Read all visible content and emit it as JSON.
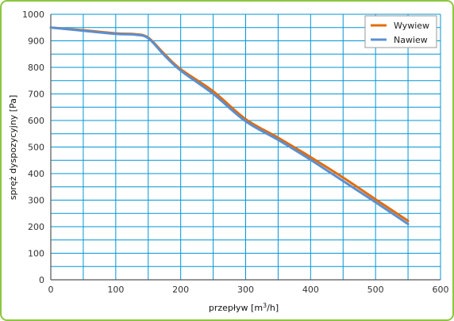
{
  "chart_data": {
    "type": "line",
    "xlabel": "przepływ [m",
    "xlabel_sup": "3",
    "xlabel_suffix": "/h]",
    "ylabel": "spręż dyspozycyjny [Pa]",
    "xlim": [
      0,
      600
    ],
    "ylim": [
      0,
      1000
    ],
    "x_ticks": [
      "0",
      "100",
      "200",
      "300",
      "400",
      "500",
      "600"
    ],
    "y_ticks": [
      "0",
      "100",
      "200",
      "300",
      "400",
      "500",
      "600",
      "700",
      "800",
      "900",
      "1000"
    ],
    "grid": true,
    "legend_position": "top-right",
    "series": [
      {
        "name": "Wywiew",
        "color": "#e36c0a",
        "x": [
          0,
          50,
          100,
          130,
          150,
          175,
          200,
          250,
          300,
          350,
          400,
          450,
          500,
          550
        ],
        "y": [
          950,
          940,
          928,
          925,
          912,
          850,
          793,
          710,
          605,
          535,
          462,
          385,
          303,
          222
        ]
      },
      {
        "name": "Nawiew",
        "color": "#5b8fd0",
        "x": [
          0,
          50,
          100,
          130,
          150,
          175,
          200,
          250,
          300,
          350,
          400,
          450,
          500,
          550
        ],
        "y": [
          950,
          938,
          926,
          923,
          910,
          845,
          788,
          700,
          597,
          527,
          452,
          372,
          292,
          210
        ]
      }
    ]
  }
}
